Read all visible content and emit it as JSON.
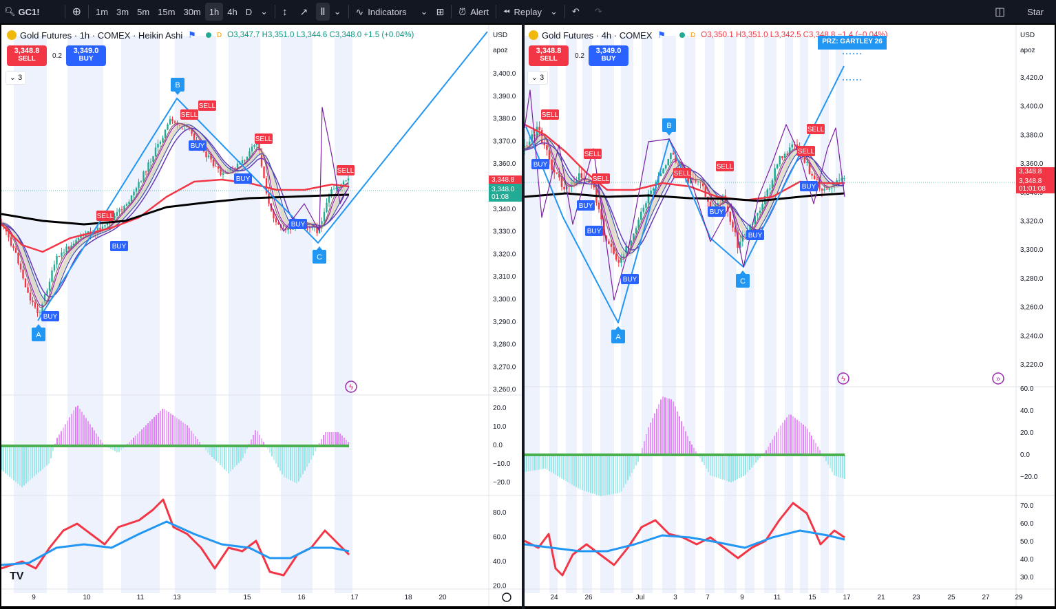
{
  "toolbar": {
    "symbol": "GC1!",
    "intervals": [
      "1m",
      "3m",
      "5m",
      "15m",
      "30m",
      "1h",
      "4h",
      "D"
    ],
    "active_interval": "1h",
    "indicators_label": "Indicators",
    "alert_label": "Alert",
    "replay_label": "Replay",
    "star_label": "Star"
  },
  "left_chart": {
    "title": "Gold Futures · 1h · COMEX · Heikin Ashi",
    "source_dot": "D",
    "ohlc": {
      "o": "O3,347.7",
      "h": "H3,351.0",
      "l": "L3,344.6",
      "c": "C3,348.0",
      "chg": "+1.5 (+0.04%)"
    },
    "sell_price": "3,348.8",
    "sell_label": "SELL",
    "spread": "0.2",
    "buy_price": "3,349.0",
    "buy_label": "BUY",
    "collapse_count": "3",
    "currency": "USD",
    "scale_mode": "apoz",
    "price_ticks": [
      "3,400.0",
      "3,390.0",
      "3,380.0",
      "3,370.0",
      "3,360.0",
      "3,350.0",
      "3,340.0",
      "3,330.0",
      "3,320.0",
      "3,310.0",
      "3,300.0",
      "3,290.0",
      "3,280.0",
      "3,270.0",
      "3,260.0"
    ],
    "last_price": "3,348.0",
    "last_price_top": "3,348.8",
    "countdown": "01:08",
    "osc_ticks": [
      "20.0",
      "10.0",
      "0.0",
      "−10.0",
      "−20.0"
    ],
    "rsi_ticks": [
      "80.0",
      "60.0",
      "40.0",
      "20.0"
    ],
    "time_ticks": [
      "9",
      "10",
      "11",
      "13",
      "15",
      "16",
      "17",
      "18",
      "20"
    ],
    "pattern_points": [
      "A",
      "B",
      "C"
    ],
    "signal_labels": [
      "BUY",
      "SELL"
    ]
  },
  "right_chart": {
    "title": "Gold Futures · 4h · COMEX",
    "source_dot": "D",
    "ohlc": {
      "o": "O3,350.1",
      "h": "H3,351.0",
      "l": "L3,342.5",
      "c": "C3,348.8",
      "chg": "−1.4 (−0.04%)"
    },
    "sell_price": "3,348.8",
    "sell_label": "SELL",
    "spread": "0.2",
    "buy_price": "3,349.0",
    "buy_label": "BUY",
    "collapse_count": "3",
    "currency": "USD",
    "scale_mode": "apoz",
    "price_ticks": [
      "3,420.0",
      "3,400.0",
      "3,380.0",
      "3,360.0",
      "3,340.0",
      "3,320.0",
      "3,300.0",
      "3,280.0",
      "3,260.0",
      "3,240.0",
      "3,220.0"
    ],
    "last_price": "3,348.8",
    "countdown": "01:01:08",
    "prz_label": "PRZ: GARTLEY 26",
    "osc_ticks": [
      "60.0",
      "40.0",
      "20.0",
      "0.0",
      "−20.0"
    ],
    "rsi_ticks": [
      "70.0",
      "60.0",
      "50.0",
      "40.0",
      "30.0"
    ],
    "time_ticks": [
      "24",
      "26",
      "Jul",
      "3",
      "7",
      "9",
      "11",
      "15",
      "17",
      "21",
      "23",
      "25",
      "27",
      "29"
    ],
    "pattern_points": [
      "A",
      "B",
      "C"
    ],
    "signal_labels": [
      "BUY",
      "SELL"
    ]
  },
  "colors": {
    "sell": "#f23645",
    "buy": "#2962ff",
    "pattern": "#2196f3",
    "ema": "#f23645",
    "long_ma": "#000000",
    "up_hist": "#5ee0e0",
    "down_hist": "#e040fb",
    "rsi_fast": "#f23645",
    "rsi_slow": "#2196f3"
  }
}
